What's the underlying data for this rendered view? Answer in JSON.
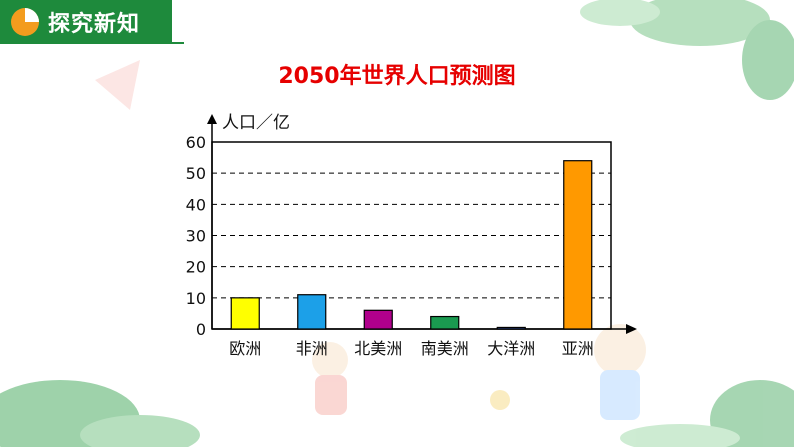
{
  "header": {
    "title": "探究新知"
  },
  "chart_data": {
    "type": "bar",
    "title": "2050年世界人口预测图",
    "ylabel": "人口／亿",
    "xlabel": "",
    "categories": [
      "欧洲",
      "非洲",
      "北美洲",
      "南美洲",
      "大洋洲",
      "亚洲"
    ],
    "values": [
      10,
      11,
      6,
      4,
      0.5,
      54
    ],
    "ylim": [
      0,
      60
    ],
    "yticks": [
      "0",
      "10",
      "20",
      "30",
      "40",
      "50",
      "60"
    ],
    "grid": "dashed horizontal",
    "colors": [
      "#ffff00",
      "#1ca0e8",
      "#b0008c",
      "#1a9a50",
      "#3a5ab8",
      "#ff9900"
    ]
  },
  "colors": {
    "header_bg": "#1e8a3c",
    "title": "#e60000",
    "accent_orange": "#f39c1e"
  }
}
